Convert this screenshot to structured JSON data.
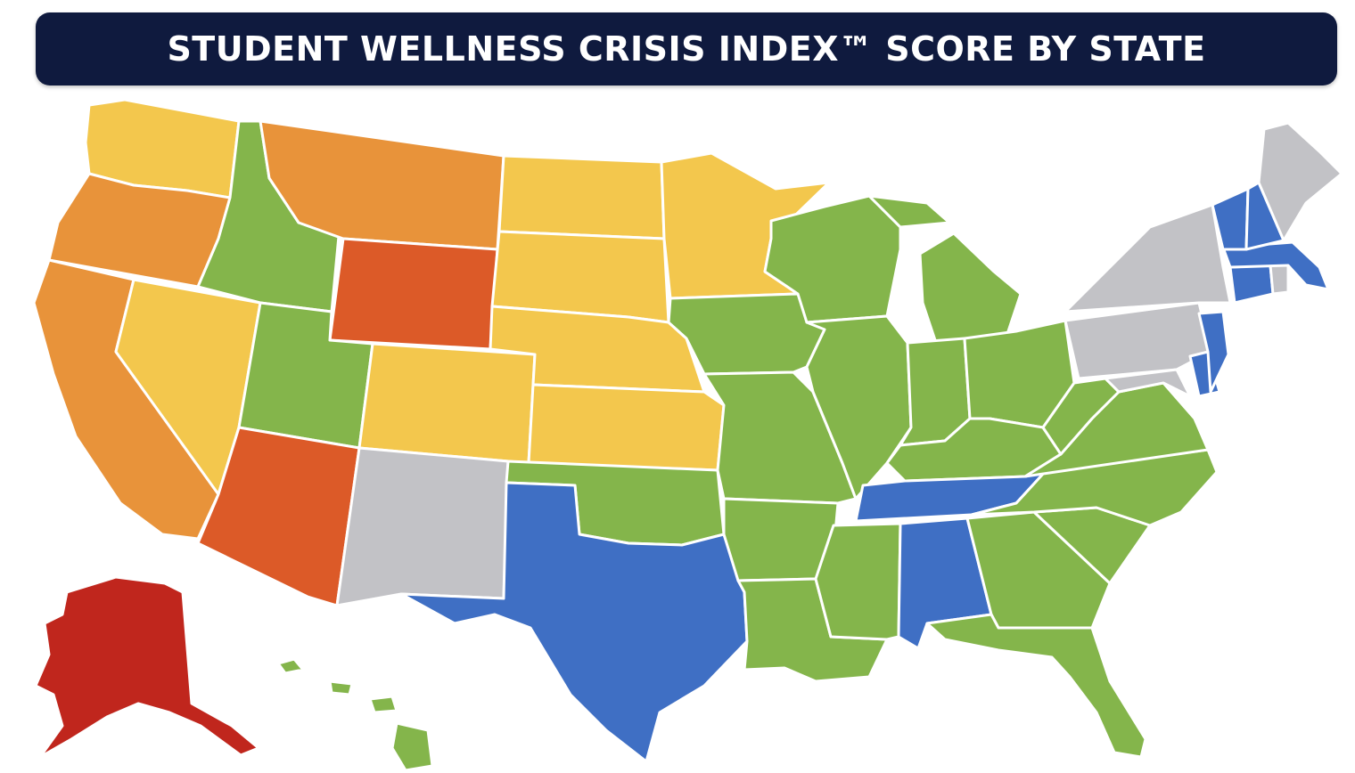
{
  "title": "STUDENT WELLNESS CRISIS INDEX™ SCORE BY STATE",
  "colors": {
    "red": "#c0261d",
    "orange_red": "#dc5a28",
    "orange": "#e8933a",
    "yellow": "#f3c74d",
    "green": "#84b54b",
    "blue": "#3f6fc4",
    "grey": "#c2c2c6",
    "title_bg": "#0f1a3e"
  },
  "states": [
    {
      "code": "WA",
      "name": "Washington",
      "color": "yellow"
    },
    {
      "code": "OR",
      "name": "Oregon",
      "color": "orange"
    },
    {
      "code": "CA",
      "name": "California",
      "color": "orange"
    },
    {
      "code": "NV",
      "name": "Nevada",
      "color": "yellow"
    },
    {
      "code": "ID",
      "name": "Idaho",
      "color": "green"
    },
    {
      "code": "MT",
      "name": "Montana",
      "color": "orange"
    },
    {
      "code": "WY",
      "name": "Wyoming",
      "color": "orange_red"
    },
    {
      "code": "UT",
      "name": "Utah",
      "color": "green"
    },
    {
      "code": "AZ",
      "name": "Arizona",
      "color": "orange_red"
    },
    {
      "code": "CO",
      "name": "Colorado",
      "color": "yellow"
    },
    {
      "code": "NM",
      "name": "New Mexico",
      "color": "grey"
    },
    {
      "code": "ND",
      "name": "North Dakota",
      "color": "yellow"
    },
    {
      "code": "SD",
      "name": "South Dakota",
      "color": "yellow"
    },
    {
      "code": "NE",
      "name": "Nebraska",
      "color": "yellow"
    },
    {
      "code": "KS",
      "name": "Kansas",
      "color": "yellow"
    },
    {
      "code": "OK",
      "name": "Oklahoma",
      "color": "green"
    },
    {
      "code": "TX",
      "name": "Texas",
      "color": "blue"
    },
    {
      "code": "MN",
      "name": "Minnesota",
      "color": "yellow"
    },
    {
      "code": "IA",
      "name": "Iowa",
      "color": "green"
    },
    {
      "code": "MO",
      "name": "Missouri",
      "color": "green"
    },
    {
      "code": "AR",
      "name": "Arkansas",
      "color": "green"
    },
    {
      "code": "LA",
      "name": "Louisiana",
      "color": "green"
    },
    {
      "code": "WI",
      "name": "Wisconsin",
      "color": "green"
    },
    {
      "code": "IL",
      "name": "Illinois",
      "color": "green"
    },
    {
      "code": "MI",
      "name": "Michigan",
      "color": "green"
    },
    {
      "code": "IN",
      "name": "Indiana",
      "color": "green"
    },
    {
      "code": "OH",
      "name": "Ohio",
      "color": "green"
    },
    {
      "code": "KY",
      "name": "Kentucky",
      "color": "green"
    },
    {
      "code": "TN",
      "name": "Tennessee",
      "color": "blue"
    },
    {
      "code": "MS",
      "name": "Mississippi",
      "color": "green"
    },
    {
      "code": "AL",
      "name": "Alabama",
      "color": "blue"
    },
    {
      "code": "GA",
      "name": "Georgia",
      "color": "green"
    },
    {
      "code": "FL",
      "name": "Florida",
      "color": "green"
    },
    {
      "code": "SC",
      "name": "South Carolina",
      "color": "green"
    },
    {
      "code": "NC",
      "name": "North Carolina",
      "color": "green"
    },
    {
      "code": "VA",
      "name": "Virginia",
      "color": "green"
    },
    {
      "code": "WV",
      "name": "West Virginia",
      "color": "green"
    },
    {
      "code": "PA",
      "name": "Pennsylvania",
      "color": "grey"
    },
    {
      "code": "NY",
      "name": "New York",
      "color": "grey"
    },
    {
      "code": "MD",
      "name": "Maryland",
      "color": "grey"
    },
    {
      "code": "DE",
      "name": "Delaware",
      "color": "blue"
    },
    {
      "code": "NJ",
      "name": "New Jersey",
      "color": "blue"
    },
    {
      "code": "CT",
      "name": "Connecticut",
      "color": "blue"
    },
    {
      "code": "RI",
      "name": "Rhode Island",
      "color": "grey"
    },
    {
      "code": "MA",
      "name": "Massachusetts",
      "color": "blue"
    },
    {
      "code": "VT",
      "name": "Vermont",
      "color": "blue"
    },
    {
      "code": "NH",
      "name": "New Hampshire",
      "color": "blue"
    },
    {
      "code": "ME",
      "name": "Maine",
      "color": "grey"
    },
    {
      "code": "AK",
      "name": "Alaska",
      "color": "red"
    },
    {
      "code": "HI",
      "name": "Hawaii",
      "color": "green"
    }
  ]
}
